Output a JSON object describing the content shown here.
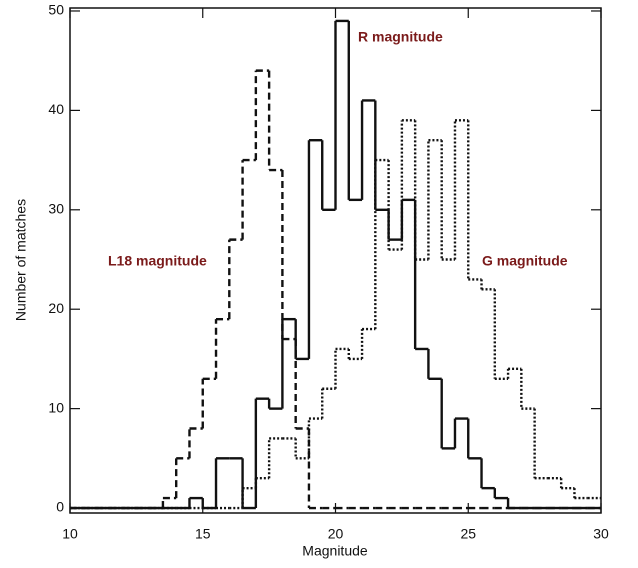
{
  "chart_data": {
    "type": "histogram",
    "xlabel": "Magnitude",
    "ylabel": "Number of matches",
    "bins": [
      10,
      10.5,
      11,
      11.5,
      12,
      12.5,
      13,
      13.5,
      14,
      14.5,
      15,
      15.5,
      16,
      16.5,
      17,
      17.5,
      18,
      18.5,
      19,
      19.5,
      20,
      20.5,
      21,
      21.5,
      22,
      22.5,
      23,
      23.5,
      24,
      24.5,
      25,
      25.5,
      26,
      26.5,
      27,
      27.5,
      28,
      28.5,
      29,
      29.5,
      30
    ],
    "series": [
      {
        "name": "L18 magnitude",
        "color": "#111111",
        "linestyle": "dashed",
        "values": [
          0,
          0,
          0,
          0,
          0,
          0,
          0,
          1,
          5,
          8,
          13,
          19,
          27,
          35,
          44,
          34,
          17,
          8,
          0,
          0,
          0,
          0,
          0,
          0,
          0,
          0,
          0,
          0,
          0,
          0,
          0,
          0,
          0,
          0,
          0,
          0,
          0,
          0,
          0,
          0
        ]
      },
      {
        "name": "R magnitude",
        "color": "#111111",
        "linestyle": "solid",
        "values": [
          0,
          0,
          0,
          0,
          0,
          0,
          0,
          0,
          0,
          1,
          0,
          5,
          5,
          0,
          11,
          10,
          19,
          15,
          37,
          30,
          49,
          31,
          41,
          30,
          27,
          31,
          16,
          13,
          6,
          9,
          5,
          2,
          1,
          0,
          0,
          0,
          0,
          0,
          0,
          0
        ]
      },
      {
        "name": "G magnitude",
        "color": "#111111",
        "linestyle": "dotted",
        "values": [
          0,
          0,
          0,
          0,
          0,
          0,
          0,
          0,
          0,
          0,
          0,
          0,
          0,
          2,
          3,
          7,
          7,
          5,
          9,
          12,
          16,
          15,
          18,
          35,
          26,
          39,
          25,
          37,
          25,
          39,
          23,
          22,
          13,
          14,
          10,
          3,
          3,
          2,
          1,
          1
        ]
      }
    ],
    "xlim": [
      10,
      30
    ],
    "xticks": [
      10,
      15,
      20,
      25,
      30
    ],
    "ylim": [
      -0.5,
      50.3
    ],
    "yticks": [
      0,
      10,
      20,
      30,
      40,
      50
    ]
  }
}
